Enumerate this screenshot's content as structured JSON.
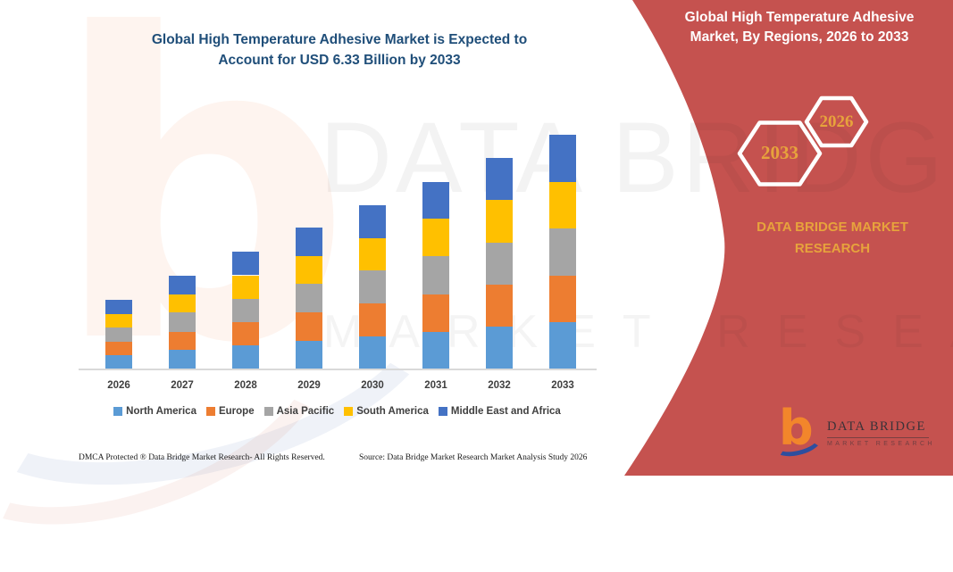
{
  "colors": {
    "accent_red": "#C5524F",
    "gold": "#E7A33C",
    "title_blue": "#1F4E79",
    "axis_gray": "#D9D9D9"
  },
  "header": {
    "title_line1": "Global High Temperature Adhesive Market is Expected to",
    "title_line2": "Account for USD 6.33 Billion by 2033"
  },
  "ribbon": {
    "title_line1": "Global High Temperature Adhesive",
    "title_line2": "Market, By Regions, 2026 to 2033",
    "brand": "DATA BRIDGE MARKET RESEARCH",
    "hexagon_left_year": "2033",
    "hexagon_right_year": "2026"
  },
  "chart_data": {
    "type": "bar",
    "subtype": "stacked-vertical",
    "title": "Global High Temperature Adhesive Market is Expected to Account for USD 6.33 Billion by 2033",
    "unit": "USD Billion",
    "categories": [
      "2026",
      "2027",
      "2028",
      "2029",
      "2030",
      "2031",
      "2032",
      "2033"
    ],
    "series": [
      {
        "name": "North America",
        "color": "#5B9BD5",
        "values": [
          0.37,
          0.51,
          0.63,
          0.76,
          0.89,
          1.01,
          1.14,
          1.27
        ]
      },
      {
        "name": "Europe",
        "color": "#ED7D31",
        "values": [
          0.37,
          0.5,
          0.63,
          0.76,
          0.88,
          1.01,
          1.14,
          1.26
        ]
      },
      {
        "name": "Asia Pacific",
        "color": "#A5A5A5",
        "values": [
          0.38,
          0.51,
          0.64,
          0.77,
          0.89,
          1.02,
          1.14,
          1.27
        ]
      },
      {
        "name": "South America",
        "color": "#FFC000",
        "values": [
          0.37,
          0.5,
          0.63,
          0.76,
          0.88,
          1.01,
          1.14,
          1.26
        ]
      },
      {
        "name": "Middle East and Africa",
        "color": "#4472C4",
        "values": [
          0.38,
          0.51,
          0.64,
          0.76,
          0.89,
          1.01,
          1.14,
          1.27
        ]
      }
    ],
    "totals": [
      1.87,
      2.53,
      3.17,
      3.81,
      4.43,
      5.06,
      5.7,
      6.33
    ],
    "ylim": [
      0,
      6.6
    ],
    "gridlines": false,
    "y_axis_visible": false,
    "legend_position": "bottom"
  },
  "watermark": {
    "letter": "b",
    "line1": "DATA BRIDGE",
    "line2": "MARKET RESEARCH"
  },
  "logo": {
    "letter": "b",
    "name": "DATA BRIDGE",
    "subtitle": "MARKET RESEARCH"
  },
  "footer": {
    "left": "DMCA Protected ® Data Bridge Market Research-  All Rights Reserved.",
    "right": "Source: Data Bridge Market Research  Market Analysis Study 2026"
  }
}
